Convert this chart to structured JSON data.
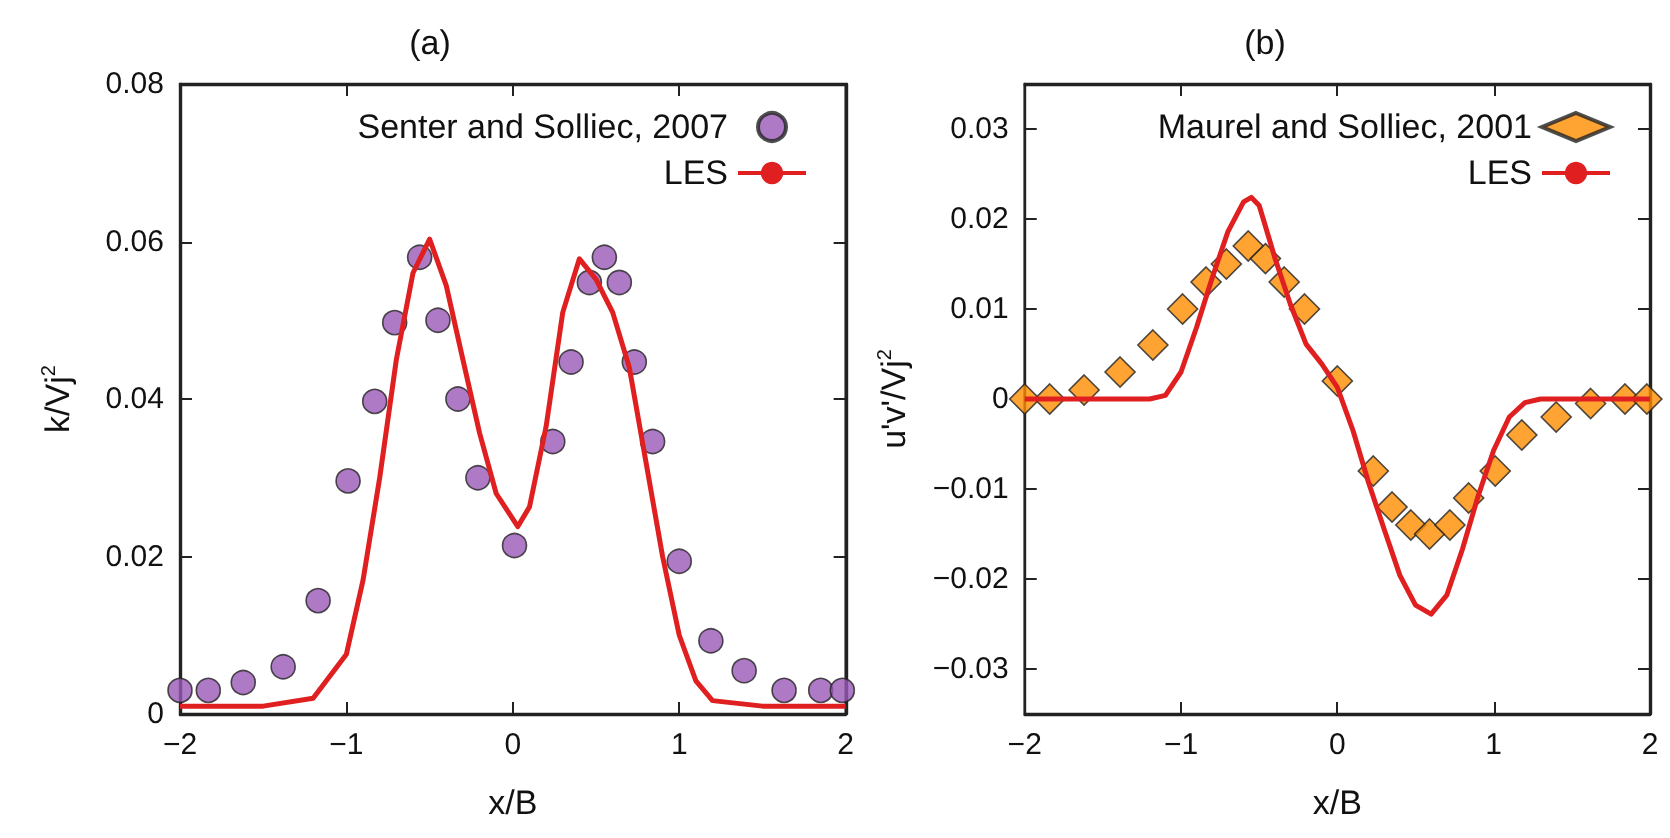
{
  "chart_data": [
    {
      "type": "scatter",
      "title": "(a)",
      "xlabel": "x/B",
      "ylabel": "k/Vj$^{2}$",
      "xlim": [
        -2,
        2
      ],
      "xticks": [
        -2,
        -1,
        0,
        1,
        2
      ],
      "ylim": [
        0,
        0.08
      ],
      "yticks": [
        0,
        0.02,
        0.04,
        0.06,
        0.08
      ],
      "grid": false,
      "legend": "top right",
      "series": [
        {
          "name": "Senter and Solliec, 2007",
          "marker": "circle",
          "color": "#9b59b6",
          "x": [
            -2,
            -1.83,
            -1.62,
            -1.38,
            -1.17,
            -0.99,
            -0.83,
            -0.71,
            -0.56,
            -0.45,
            -0.33,
            -0.21,
            0.01,
            0.24,
            0.35,
            0.46,
            0.55,
            0.64,
            0.73,
            0.84,
            1.0,
            1.19,
            1.39,
            1.63,
            1.85,
            1.98
          ],
          "values": [
            0.003,
            0.003,
            0.004,
            0.006,
            0.0144,
            0.0296,
            0.0397,
            0.0497,
            0.058,
            0.05,
            0.04,
            0.03,
            0.0214,
            0.0346,
            0.0447,
            0.0548,
            0.058,
            0.0548,
            0.0447,
            0.0346,
            0.0194,
            0.0093,
            0.0055,
            0.003,
            0.003,
            0.003
          ]
        },
        {
          "name": "LES",
          "type": "line",
          "marker": "none",
          "line_style": "solid",
          "color": "#e02020",
          "x": [
            -2,
            -1.5,
            -1.2,
            -1.0,
            -0.9,
            -0.8,
            -0.7,
            -0.6,
            -0.5,
            -0.4,
            -0.3,
            -0.2,
            -0.1,
            0.03,
            0.1,
            0.2,
            0.3,
            0.4,
            0.5,
            0.6,
            0.7,
            0.8,
            0.9,
            1.0,
            1.1,
            1.2,
            1.5,
            2
          ],
          "values": [
            0.001,
            0.001,
            0.002,
            0.0076,
            0.017,
            0.03,
            0.045,
            0.056,
            0.0603,
            0.0544,
            0.045,
            0.0357,
            0.028,
            0.0238,
            0.0263,
            0.0365,
            0.051,
            0.0578,
            0.0552,
            0.051,
            0.044,
            0.032,
            0.02,
            0.01,
            0.0042,
            0.0017,
            0.001,
            0.001
          ]
        }
      ]
    },
    {
      "type": "scatter",
      "title": "(b)",
      "xlabel": "x/B",
      "ylabel": "u'v'/Vj$^{2}$",
      "xlim": [
        -2,
        2
      ],
      "xticks": [
        -2,
        -1,
        0,
        1,
        2
      ],
      "ylim": [
        -0.035,
        0.035
      ],
      "yticks": [
        -0.03,
        -0.02,
        -0.01,
        0,
        0.01,
        0.02,
        0.03
      ],
      "grid": false,
      "legend": "top right",
      "series": [
        {
          "name": "Maurel and Solliec, 2001",
          "marker": "diamond",
          "color": "#ff8c00",
          "x": [
            -2,
            -1.84,
            -1.62,
            -1.39,
            -1.18,
            -0.99,
            -0.84,
            -0.71,
            -0.57,
            -0.46,
            -0.34,
            -0.21,
            0.0,
            0.23,
            0.35,
            0.47,
            0.59,
            0.72,
            0.84,
            1.01,
            1.18,
            1.4,
            1.62,
            1.84,
            1.98
          ],
          "values": [
            0,
            0,
            0.001,
            0.003,
            0.006,
            0.01,
            0.013,
            0.015,
            0.017,
            0.0156,
            0.013,
            0.01,
            0.002,
            -0.008,
            -0.012,
            -0.014,
            -0.015,
            -0.014,
            -0.011,
            -0.008,
            -0.004,
            -0.002,
            -0.0005,
            0,
            0
          ]
        },
        {
          "name": "LES",
          "type": "line",
          "marker": "none",
          "line_style": "solid",
          "color": "#e02020",
          "x": [
            -2,
            -1.2,
            -1.1,
            -1.0,
            -0.9,
            -0.8,
            -0.7,
            -0.6,
            -0.55,
            -0.5,
            -0.4,
            -0.3,
            -0.2,
            -0.1,
            0,
            0.1,
            0.2,
            0.3,
            0.4,
            0.5,
            0.6,
            0.7,
            0.8,
            0.9,
            1.0,
            1.1,
            1.2,
            1.3,
            2
          ],
          "values": [
            0,
            0,
            0.0004,
            0.003,
            0.008,
            0.0135,
            0.0186,
            0.0219,
            0.0224,
            0.0215,
            0.0157,
            0.0105,
            0.0061,
            0.0039,
            0.0013,
            -0.0035,
            -0.0093,
            -0.0145,
            -0.0196,
            -0.0229,
            -0.0239,
            -0.0218,
            -0.0167,
            -0.0108,
            -0.0057,
            -0.002,
            -0.0004,
            0,
            0
          ]
        }
      ]
    }
  ]
}
